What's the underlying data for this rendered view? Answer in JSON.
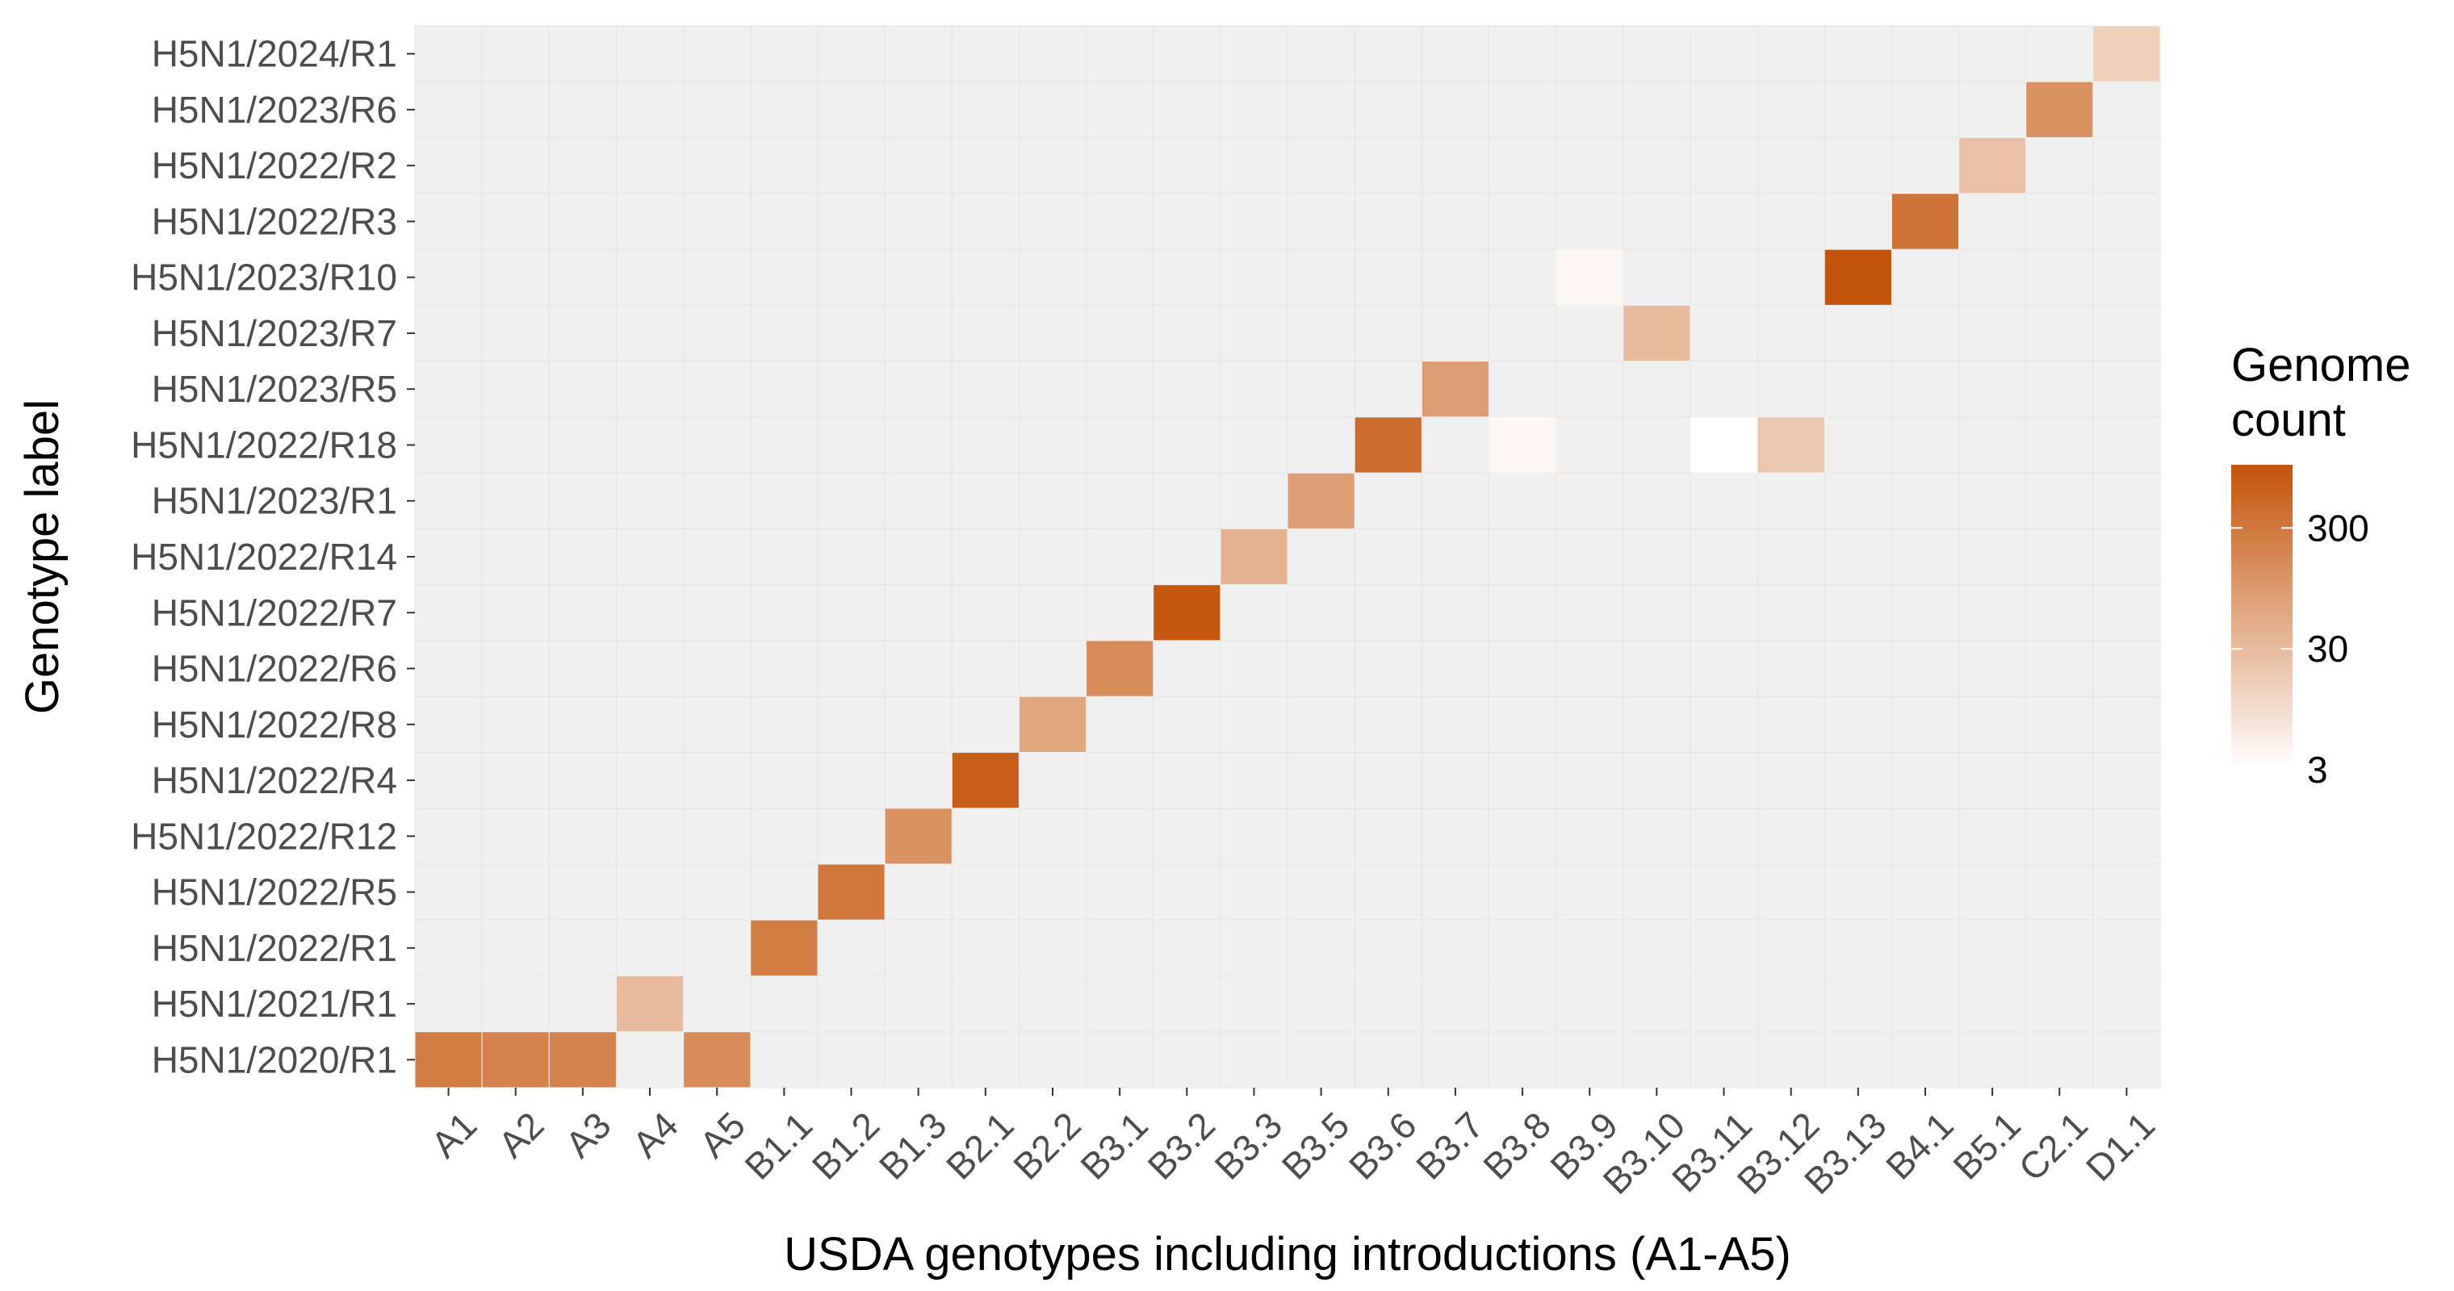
{
  "chart_data": {
    "type": "heatmap",
    "title": "",
    "xlabel": "USDA genotypes including introductions (A1-A5)",
    "ylabel": "Genotype label",
    "x_categories": [
      "A1",
      "A2",
      "A3",
      "A4",
      "A5",
      "B1.1",
      "B1.2",
      "B1.3",
      "B2.1",
      "B2.2",
      "B3.1",
      "B3.2",
      "B3.3",
      "B3.5",
      "B3.6",
      "B3.7",
      "B3.8",
      "B3.9",
      "B3.10",
      "B3.11",
      "B3.12",
      "B3.13",
      "B4.1",
      "B5.1",
      "C2.1",
      "D1.1"
    ],
    "y_categories": [
      "H5N1/2020/R1",
      "H5N1/2021/R1",
      "H5N1/2022/R1",
      "H5N1/2022/R5",
      "H5N1/2022/R12",
      "H5N1/2022/R4",
      "H5N1/2022/R8",
      "H5N1/2022/R6",
      "H5N1/2022/R7",
      "H5N1/2022/R14",
      "H5N1/2023/R1",
      "H5N1/2022/R18",
      "H5N1/2023/R5",
      "H5N1/2023/R7",
      "H5N1/2023/R10",
      "H5N1/2022/R3",
      "H5N1/2022/R2",
      "H5N1/2023/R6",
      "H5N1/2024/R1"
    ],
    "cells": [
      {
        "x": "A1",
        "y": "H5N1/2020/R1",
        "value": 250
      },
      {
        "x": "A2",
        "y": "H5N1/2020/R1",
        "value": 200
      },
      {
        "x": "A3",
        "y": "H5N1/2020/R1",
        "value": 200
      },
      {
        "x": "A4",
        "y": "H5N1/2021/R1",
        "value": 30
      },
      {
        "x": "A5",
        "y": "H5N1/2020/R1",
        "value": 150
      },
      {
        "x": "B1.1",
        "y": "H5N1/2022/R1",
        "value": 250
      },
      {
        "x": "B1.2",
        "y": "H5N1/2022/R5",
        "value": 300
      },
      {
        "x": "B1.3",
        "y": "H5N1/2022/R12",
        "value": 120
      },
      {
        "x": "B2.1",
        "y": "H5N1/2022/R4",
        "value": 700
      },
      {
        "x": "B2.2",
        "y": "H5N1/2022/R8",
        "value": 60
      },
      {
        "x": "B3.1",
        "y": "H5N1/2022/R6",
        "value": 150
      },
      {
        "x": "B3.2",
        "y": "H5N1/2022/R7",
        "value": 900
      },
      {
        "x": "B3.3",
        "y": "H5N1/2022/R14",
        "value": 40
      },
      {
        "x": "B3.5",
        "y": "H5N1/2023/R1",
        "value": 80
      },
      {
        "x": "B3.6",
        "y": "H5N1/2022/R18",
        "value": 450
      },
      {
        "x": "B3.7",
        "y": "H5N1/2023/R5",
        "value": 80
      },
      {
        "x": "B3.8",
        "y": "H5N1/2022/R18",
        "value": 4
      },
      {
        "x": "B3.9",
        "y": "H5N1/2023/R10",
        "value": 4
      },
      {
        "x": "B3.10",
        "y": "H5N1/2023/R7",
        "value": 30
      },
      {
        "x": "B3.11",
        "y": "H5N1/2022/R18",
        "value": 3
      },
      {
        "x": "B3.12",
        "y": "H5N1/2022/R18",
        "value": 20
      },
      {
        "x": "B3.13",
        "y": "H5N1/2023/R10",
        "value": 1000
      },
      {
        "x": "B4.1",
        "y": "H5N1/2022/R3",
        "value": 350
      },
      {
        "x": "B5.1",
        "y": "H5N1/2022/R2",
        "value": 25
      },
      {
        "x": "C2.1",
        "y": "H5N1/2023/R6",
        "value": 120
      },
      {
        "x": "D1.1",
        "y": "H5N1/2024/R1",
        "value": 15
      }
    ],
    "color_scale": {
      "type": "log10",
      "min": 3,
      "max": 1000,
      "low_color": "#ffffff",
      "high_color": "#c4540a"
    },
    "background_color": "#f0f0f0",
    "legend": {
      "title": [
        "Genome",
        "count"
      ],
      "ticks": [
        {
          "value": 3,
          "label": "3"
        },
        {
          "value": 30,
          "label": "30"
        },
        {
          "value": 300,
          "label": "300"
        }
      ],
      "position": "right"
    },
    "grid": true
  }
}
